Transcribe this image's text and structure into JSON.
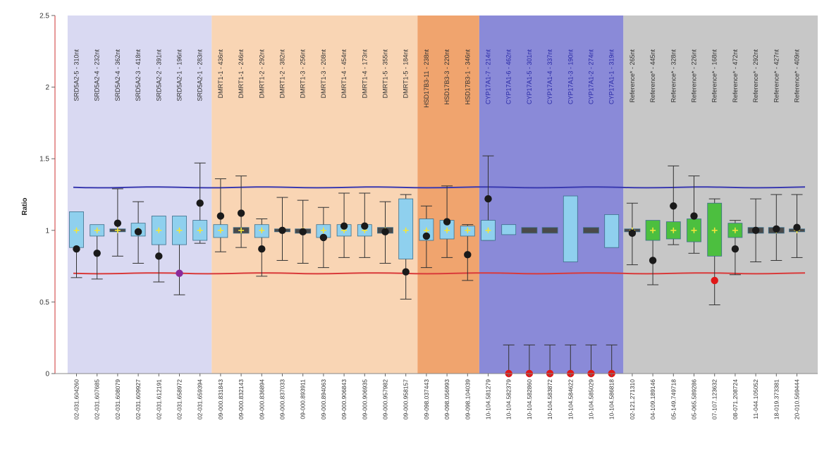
{
  "chart_data": {
    "type": "box",
    "ylabel": "Ratio",
    "ylim": [
      0,
      2.5
    ],
    "yticks": [
      "0",
      "0.5",
      "1",
      "1.5",
      "2",
      "2.5"
    ],
    "upper_threshold": 1.3,
    "lower_threshold": 0.7,
    "regions": [
      {
        "color": "#d9d9f2",
        "from": 0,
        "to": 7
      },
      {
        "color": "#f9d5b4",
        "from": 7,
        "to": 17
      },
      {
        "color": "#f0a46e",
        "from": 17,
        "to": 20
      },
      {
        "color": "#8a8ad8",
        "from": 20,
        "to": 27
      },
      {
        "color": "#c7c7c7",
        "from": 27,
        "to": 37
      }
    ],
    "probes": [
      "SRD5A2-5 - 310nt",
      "SRD5A2-4 - 232nt",
      "SRD5A2-4 - 362nt",
      "SRD5A2-3 - 418nt",
      "SRD5A2-2 - 391nt",
      "SRD5A2-1 - 196nt",
      "SRD5A2-1 - 283nt",
      "DMRT1-1 - 436nt",
      "DMRT1-1 - 246nt",
      "DMRT1-2 - 292nt",
      "DMRT1-2 - 382nt",
      "DMRT1-3 - 256nt",
      "DMRT1-3 - 208nt",
      "DMRT1-4 - 454nt",
      "DMRT1-4 - 173nt",
      "DMRT1-5 - 355nt",
      "DMRT1-5 - 184nt",
      "HSD17B3-11 - 238nt",
      "HSD17B3-3 - 220nt",
      "HSD17B3-1 - 346nt",
      "CYP17A1-7 - 214nt",
      "CYP17A1-6 - 462nt",
      "CYP17A1-5 - 301nt",
      "CYP17A1-4 - 337nt",
      "CYP17A1-3 - 190nt",
      "CYP17A1-2 - 274nt",
      "CYP17A1-1 - 319nt",
      "Reference* - 265nt",
      "Reference* - 445nt",
      "Reference* - 328nt",
      "Reference* - 226nt",
      "Reference* - 168nt",
      "Reference* - 472nt",
      "Reference* - 292nt",
      "Reference* - 427nt",
      "Reference* - 409nt"
    ],
    "samples": [
      "02-031.604260",
      "02-031.607685",
      "02-031.608079",
      "02-031.609927",
      "02-031.612191",
      "02-031.658972",
      "02-031.659394",
      "09-000.831843",
      "09-000.832143",
      "09-000.836894",
      "09-000.837033",
      "09-000.893911",
      "09-000.894063",
      "09-000.906843",
      "09-000.906935",
      "09-000.957982",
      "09-000.958157",
      "09-098.037443",
      "09-098.056993",
      "09-098.104039",
      "10-104.581279",
      "10-104.582379",
      "10-104.582860",
      "10-104.583872",
      "10-104.584622",
      "10-104.585029",
      "10-104.586818",
      "02-121.271310",
      "04-109.189146",
      "05-149.749718",
      "05-065.589286",
      "07-107.123632",
      "08-071.208724",
      "11-044.105052",
      "18-019.373381",
      "20-010.569444"
    ],
    "box_q1": [
      0.88,
      0.96,
      0.99,
      0.96,
      0.9,
      0.9,
      0.93,
      0.95,
      0.98,
      0.95,
      0.99,
      0.98,
      0.95,
      0.96,
      0.96,
      0.98,
      0.8,
      0.93,
      0.94,
      0.96,
      0.93,
      0.97,
      0.98,
      0.98,
      0.78,
      0.98,
      0.88,
      0.99,
      0.93,
      0.94,
      0.92,
      0.82,
      0.95,
      0.98,
      0.98,
      0.99
    ],
    "box_q3": [
      1.13,
      1.04,
      1.01,
      1.05,
      1.1,
      1.1,
      1.07,
      1.04,
      1.02,
      1.04,
      1.01,
      1.01,
      1.04,
      1.04,
      1.04,
      1.02,
      1.22,
      1.08,
      1.07,
      1.03,
      1.07,
      1.04,
      1.02,
      1.02,
      1.24,
      1.02,
      1.11,
      1.01,
      1.07,
      1.06,
      1.08,
      1.19,
      1.05,
      1.02,
      1.02,
      1.01
    ],
    "whisker_low": [
      0.67,
      0.66,
      0.82,
      0.77,
      0.64,
      0.55,
      0.91,
      0.85,
      0.88,
      0.68,
      0.79,
      0.77,
      0.74,
      0.81,
      0.81,
      0.77,
      0.52,
      0.74,
      0.81,
      0.65,
      0.93,
      0.0,
      0.0,
      0.0,
      0.0,
      0.0,
      0.0,
      0.76,
      0.62,
      0.9,
      0.84,
      0.48,
      0.69,
      0.78,
      0.79,
      0.81
    ],
    "whisker_high": [
      1.1,
      1.03,
      1.29,
      1.2,
      1.08,
      1.07,
      1.47,
      1.36,
      1.38,
      1.08,
      1.23,
      1.21,
      1.16,
      1.26,
      1.26,
      1.2,
      1.25,
      1.17,
      1.31,
      1.04,
      1.52,
      0.2,
      0.2,
      0.2,
      0.2,
      0.2,
      0.2,
      1.19,
      1.05,
      1.45,
      1.38,
      1.22,
      1.07,
      1.22,
      1.25,
      1.25
    ],
    "sample_value": [
      0.87,
      0.84,
      1.05,
      0.99,
      0.82,
      0.7,
      1.19,
      1.1,
      1.12,
      0.87,
      1.0,
      0.99,
      0.95,
      1.03,
      1.03,
      0.99,
      0.71,
      0.96,
      1.06,
      0.83,
      1.22,
      0.0,
      0.0,
      0.0,
      0.0,
      0.0,
      0.0,
      0.98,
      0.79,
      1.17,
      1.1,
      0.65,
      0.87,
      1.0,
      1.01,
      1.02
    ],
    "box_fill": {
      "normal": "#8fd0ee",
      "reference": "#4cbf3f",
      "thin": "#4a4a4a"
    },
    "reference_start": 27
  }
}
